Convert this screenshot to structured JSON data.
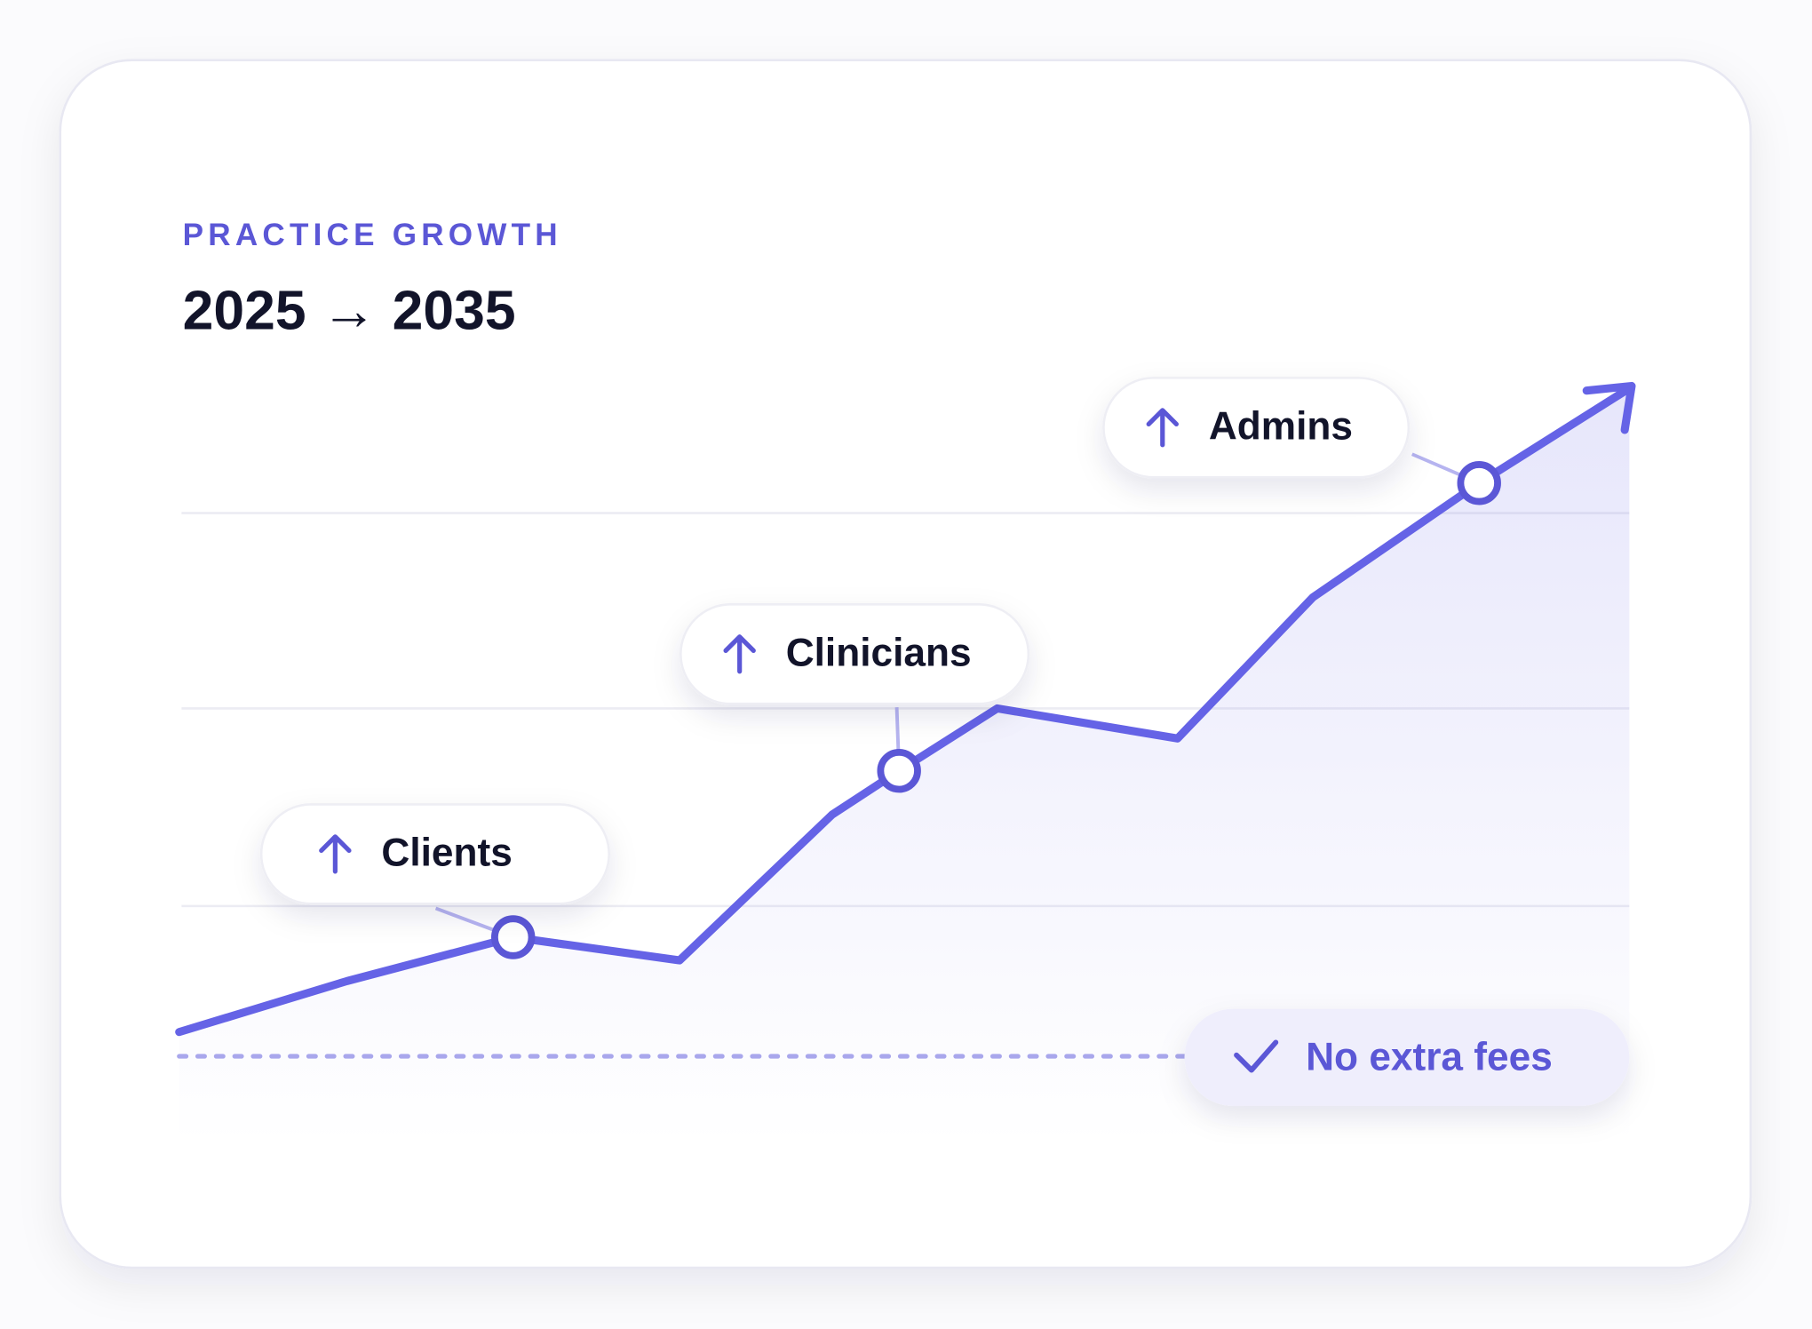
{
  "header": {
    "eyebrow": "PRACTICE GROWTH",
    "title": "2025 → 2035"
  },
  "labels": [
    "Clients",
    "Clinicians",
    "Admins"
  ],
  "badge": "No extra fees"
}
